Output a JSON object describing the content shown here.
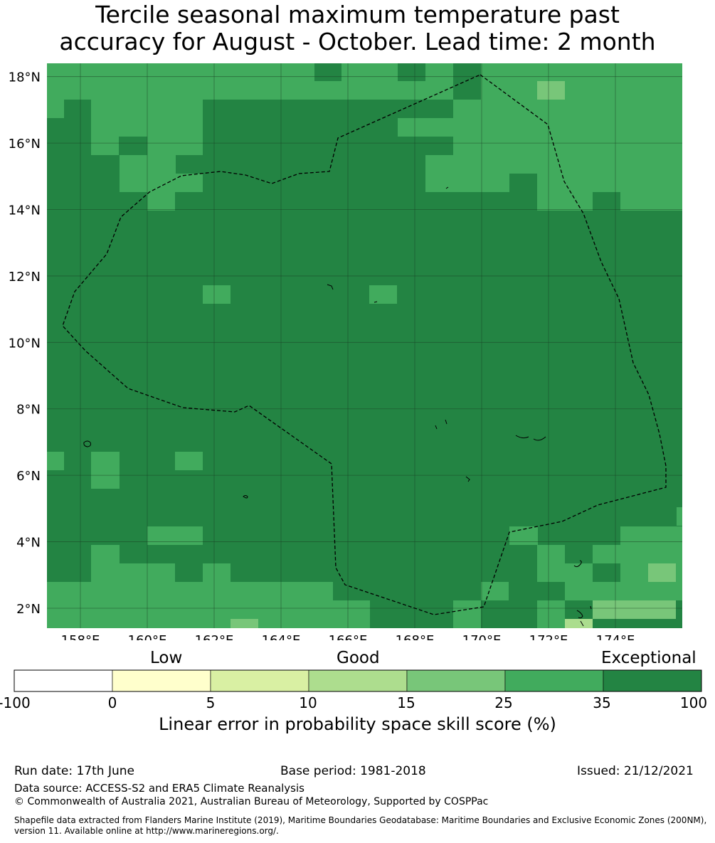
{
  "title_line1": "Tercile seasonal maximum temperature past",
  "title_line2": "accuracy for August - October. Lead time: 2 month",
  "map": {
    "lat_labels": [
      "18°N",
      "16°N",
      "14°N",
      "12°N",
      "10°N",
      "8°N",
      "6°N",
      "4°N",
      "2°N"
    ],
    "lon_labels": [
      "158°E",
      "160°E",
      "162°E",
      "164°E",
      "166°E",
      "168°E",
      "170°E",
      "172°E",
      "174°E"
    ],
    "lat_range": [
      1.4,
      18.4
    ],
    "lon_range": [
      157.0,
      176.0
    ],
    "cell_colors": {
      "10-15": "#abdd8e",
      "15-25": "#78c679",
      "25-35": "#41ab5d",
      "35-100": "#238443"
    }
  },
  "colorbar": {
    "words": [
      "Low",
      "Good",
      "Exceptional"
    ],
    "ticks": [
      "-100",
      "0",
      "5",
      "10",
      "15",
      "25",
      "35",
      "100"
    ],
    "colors": [
      "#ffffff",
      "#ffffcc",
      "#d9f0a3",
      "#addd8e",
      "#78c679",
      "#41ab5d",
      "#238443"
    ],
    "label": "Linear error in probability space skill score (%)"
  },
  "footer": {
    "run_date": "Run date: 17th June",
    "base_period": "Base period: 1981-2018",
    "issued": "Issued: 21/12/2021",
    "data_source": "Data source: ACCESS-S2 and ERA5 Climate Reanalysis",
    "copyright": "© Commonwealth of Australia 2021, Australian Bureau of Meteorology, Supported by COSPPac",
    "shapefile_line1": "Shapefile data extracted from Flanders Marine Institute (2019), Maritime Boundaries Geodatabase: Maritime Boundaries and Exclusive Economic Zones (200NM),",
    "shapefile_line2": "version 11. Available online at http://www.marineregions.org/."
  }
}
